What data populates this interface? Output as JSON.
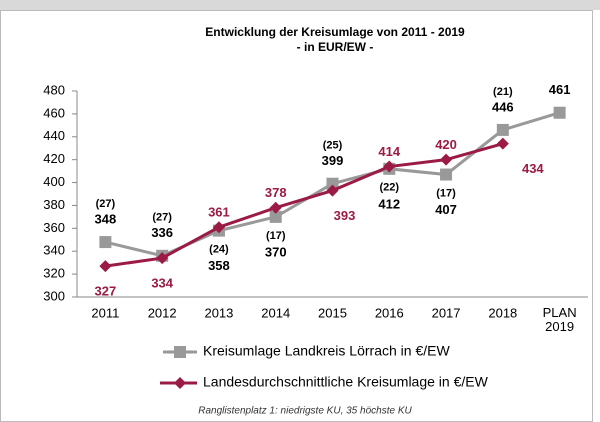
{
  "chart_data": {
    "type": "line",
    "title": "Entwicklung der Kreisumlage von 2011 - 2019",
    "subtitle": "- in EUR/EW -",
    "categories": [
      "2011",
      "2012",
      "2013",
      "2014",
      "2015",
      "2016",
      "2017",
      "2018",
      "PLAN 2019"
    ],
    "series": [
      {
        "name": "Kreisumlage Landkreis Lörrach in €/EW",
        "color": "#999999",
        "marker": "square",
        "values": [
          348,
          336,
          358,
          370,
          399,
          412,
          407,
          446,
          461
        ],
        "rank_labels": [
          "(27)",
          "(27)",
          "(24)",
          "(17)",
          "(25)",
          "(22)",
          "(17)",
          "(21)",
          null
        ]
      },
      {
        "name": "Landesdurchschnittliche Kreisumlage in €/EW",
        "color": "#9b1b45",
        "marker": "diamond",
        "values": [
          327,
          334,
          361,
          378,
          393,
          414,
          420,
          434,
          null
        ]
      }
    ],
    "ylim": [
      300,
      480
    ],
    "yticks": [
      300,
      320,
      340,
      360,
      380,
      400,
      420,
      440,
      460,
      480
    ],
    "footnote": "Ranglistenplatz 1: niedrigste KU, 35 höchste KU"
  }
}
